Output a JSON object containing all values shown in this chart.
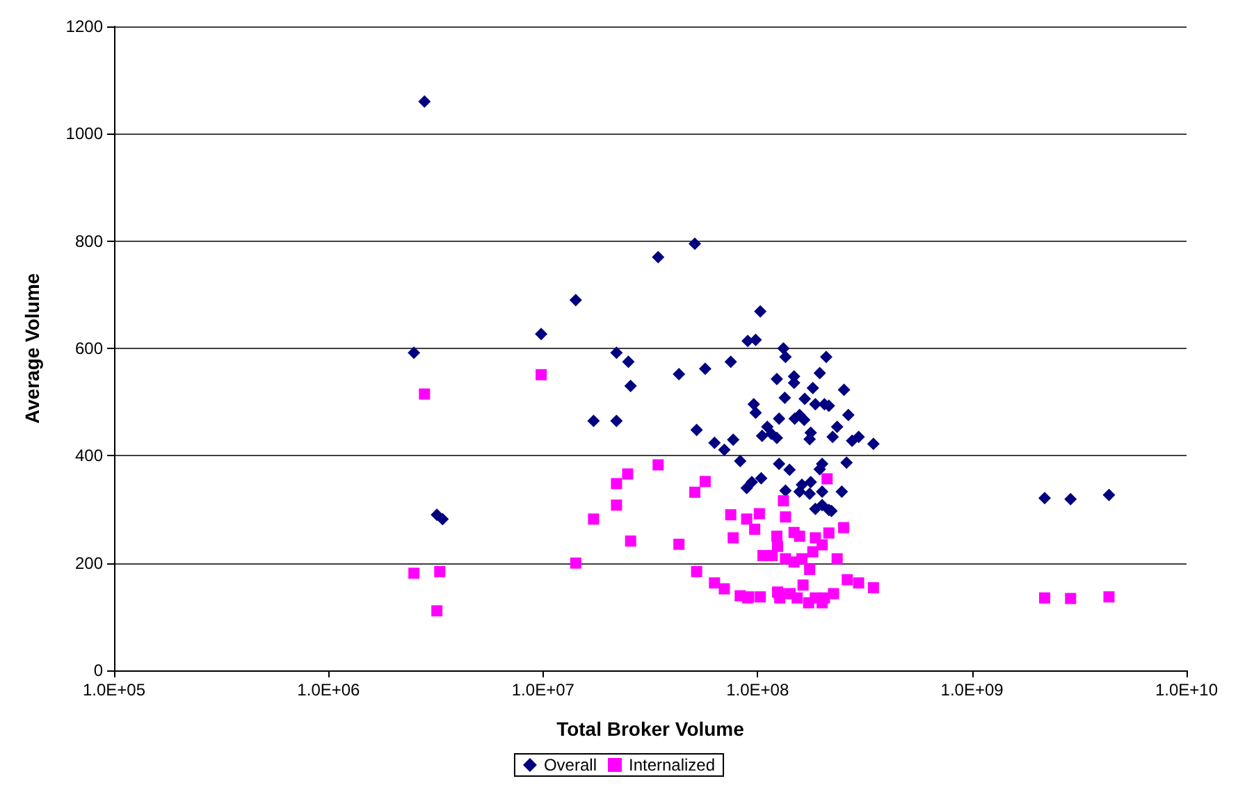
{
  "chart_data": {
    "type": "scatter",
    "xlabel": "Total Broker Volume",
    "ylabel": "Average Volume",
    "log": "x",
    "grid": "y",
    "legend": "bottom",
    "xlim": [
      100000,
      10000000000
    ],
    "xticks": [
      {
        "value": 100000,
        "label": "1.0E+05"
      },
      {
        "value": 1000000,
        "label": "1.0E+06"
      },
      {
        "value": 10000000,
        "label": "1.0E+07"
      },
      {
        "value": 100000000,
        "label": "1.0E+08"
      },
      {
        "value": 1000000000,
        "label": "1.0E+09"
      },
      {
        "value": 10000000000,
        "label": "1.0E+10"
      }
    ],
    "ylim": [
      0,
      1200
    ],
    "yticks": [
      0,
      200,
      400,
      600,
      800,
      1000,
      1200
    ],
    "series": [
      {
        "name": "Overall",
        "color": "#000080",
        "marker": "diamond",
        "x": [
          2800000,
          2500000,
          3200000,
          3400000,
          9800000,
          14200000,
          17200000,
          22000000,
          22000000,
          25000000,
          25600000,
          34400000,
          43000000,
          51000000,
          52000000,
          57000000,
          63000000,
          70000000,
          75000000,
          77000000,
          83000000,
          90000000,
          98000000,
          103000000,
          132000000,
          135000000,
          209000000,
          123000000,
          148000000,
          148000000,
          195000000,
          181000000,
          253000000,
          134000000,
          166000000,
          96000000,
          98000000,
          186000000,
          205000000,
          215000000,
          265000000,
          126000000,
          149000000,
          157000000,
          165000000,
          235000000,
          111000000,
          105000000,
          116000000,
          123000000,
          177000000,
          175000000,
          224000000,
          276000000,
          296000000,
          347000000,
          126000000,
          141000000,
          200000000,
          195000000,
          260000000,
          104000000,
          94000000,
          89000000,
          135000000,
          161000000,
          177000000,
          157000000,
          175000000,
          200000000,
          247000000,
          186000000,
          200000000,
          215000000,
          221000000,
          2180000000,
          2880000000,
          4350000000
        ],
        "values": [
          1060,
          592,
          290,
          282,
          627,
          690,
          465,
          592,
          465,
          575,
          530,
          770,
          552,
          795,
          448,
          562,
          424,
          411,
          575,
          430,
          390,
          614,
          616,
          669,
          600,
          584,
          584,
          543,
          548,
          536,
          554,
          526,
          523,
          508,
          506,
          496,
          480,
          496,
          496,
          493,
          476,
          469,
          469,
          476,
          467,
          454,
          454,
          437,
          441,
          433,
          443,
          431,
          435,
          428,
          435,
          422,
          385,
          374,
          385,
          375,
          387,
          358,
          351,
          340,
          335,
          346,
          351,
          333,
          329,
          333,
          333,
          301,
          308,
          299,
          297,
          321,
          319,
          327
        ]
      },
      {
        "name": "Internalized",
        "color": "#ff00ff",
        "marker": "square",
        "x": [
          2800000,
          2500000,
          3300000,
          3200000,
          9800000,
          14200000,
          17200000,
          22000000,
          22000000,
          24800000,
          25600000,
          34400000,
          43000000,
          51000000,
          57000000,
          52000000,
          63000000,
          70000000,
          75000000,
          77000000,
          83000000,
          90000000,
          103000000,
          89000000,
          102000000,
          97000000,
          124000000,
          127000000,
          211000000,
          132000000,
          135000000,
          252000000,
          148000000,
          157000000,
          215000000,
          123000000,
          186000000,
          124000000,
          200000000,
          181000000,
          106000000,
          117000000,
          135000000,
          148000000,
          161000000,
          235000000,
          175000000,
          91000000,
          126000000,
          142000000,
          163000000,
          186000000,
          205000000,
          226000000,
          262000000,
          296000000,
          347000000,
          153000000,
          173000000,
          200000000,
          2180000000,
          2880000000,
          4350000000
        ],
        "values": [
          515,
          181,
          184,
          111,
          551,
          200,
          282,
          308,
          348,
          366,
          241,
          383,
          235,
          332,
          352,
          184,
          163,
          152,
          290,
          247,
          139,
          135,
          137,
          282,
          292,
          263,
          146,
          135,
          357,
          316,
          286,
          266,
          257,
          250,
          256,
          250,
          247,
          231,
          234,
          221,
          214,
          214,
          208,
          202,
          208,
          208,
          188,
          137,
          143,
          143,
          159,
          135,
          135,
          143,
          169,
          163,
          154,
          135,
          126,
          126,
          135,
          134,
          137
        ]
      }
    ]
  }
}
